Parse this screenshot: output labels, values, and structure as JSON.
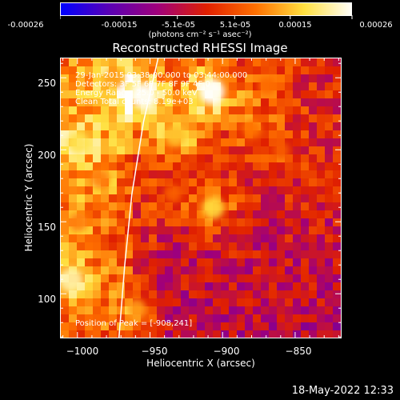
{
  "colorbar": {
    "tick_labels": [
      "-0.00026",
      "-0.00015",
      "-5.1e-05",
      "5.1e-05",
      "0.00015",
      "0.00026"
    ],
    "tick_values": [
      -0.00026,
      -0.00015,
      -5.1e-05,
      5.1e-05,
      0.00015,
      0.00026
    ],
    "range": [
      -0.00026,
      0.00026
    ],
    "units": "(photons cm⁻² s⁻¹ asec⁻²)",
    "colors": [
      "#0000ff",
      "#5a00b4",
      "#a0007a",
      "#e02000",
      "#ff7000",
      "#ffe040",
      "#ffffff"
    ]
  },
  "chart_data": {
    "type": "heatmap",
    "title": "Reconstructed RHESSI Image",
    "xlabel": "Heliocentric X (arcsec)",
    "ylabel": "Heliocentric Y (arcsec)",
    "xlim": [
      -1012,
      -818
    ],
    "ylim": [
      69,
      264
    ],
    "x_ticks": [
      -1000,
      -950,
      -900,
      -850
    ],
    "y_ticks": [
      100,
      150,
      200,
      250
    ],
    "x_tick_labels": [
      "−1000",
      "−950",
      "−900",
      "−850"
    ],
    "y_tick_labels": [
      "100",
      "150",
      "200",
      "250"
    ],
    "annotations": [
      "29-Jan-2015 03:38:00.000 to 03:44:00.000",
      "Detectors: 3F 5F 6F 7F 8F 9F 4F 0",
      "Energy Range: 25.0 - 50.0 keV",
      "Clean    Total counts: 8.19e+03"
    ],
    "peak_label": "Position of Peak = [-908,241]",
    "peak_position": [
      -908,
      241
    ],
    "sources": [
      {
        "x": -955,
        "y": 238,
        "value": 0.00026
      },
      {
        "x": -908,
        "y": 241,
        "value": 0.00026
      },
      {
        "x": -1000,
        "y": 205,
        "value": 0.00018
      },
      {
        "x": -907,
        "y": 160,
        "value": 0.00017
      },
      {
        "x": -933,
        "y": 210,
        "value": 0.00015
      },
      {
        "x": -1005,
        "y": 110,
        "value": 0.00022
      },
      {
        "x": -975,
        "y": 250,
        "value": 0.00012
      },
      {
        "x": -870,
        "y": 245,
        "value": 8e-05
      },
      {
        "x": -860,
        "y": 200,
        "value": 6e-05
      },
      {
        "x": -960,
        "y": 90,
        "value": 0.00012
      },
      {
        "x": -1000,
        "y": 150,
        "value": 0.0001
      },
      {
        "x": -880,
        "y": 215,
        "value": 9e-05
      },
      {
        "x": -935,
        "y": 170,
        "value": 7e-05
      },
      {
        "x": -985,
        "y": 180,
        "value": 0.0001
      }
    ],
    "limb_curve": [
      [
        -972,
        69
      ],
      [
        -968,
        120
      ],
      [
        -963,
        170
      ],
      [
        -955,
        220
      ],
      [
        -945,
        264
      ]
    ]
  },
  "timestamp": "18-May-2022 12:33"
}
